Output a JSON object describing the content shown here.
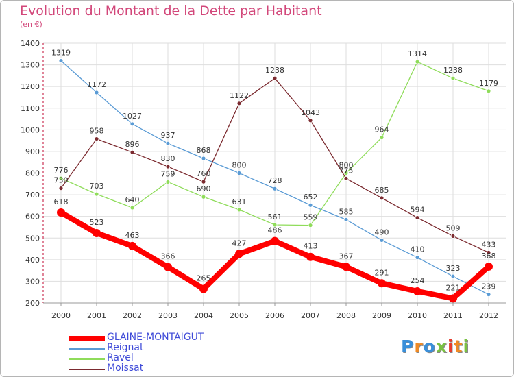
{
  "header": {
    "title": "Evolution du Montant de la Dette par Habitant",
    "subtitle": "(en €)"
  },
  "logo": {
    "text": "Proxiti",
    "colors": [
      "#3a8fd9",
      "#f08a24",
      "#3a8fd9",
      "#7ac143",
      "#e63b2e",
      "#f08a24",
      "#7ac143"
    ]
  },
  "chart_data": {
    "type": "line",
    "x": [
      "2000",
      "2001",
      "2002",
      "2003",
      "2004",
      "2005",
      "2006",
      "2007",
      "2008",
      "2009",
      "2010",
      "2011",
      "2012"
    ],
    "ylim": [
      200,
      1400
    ],
    "yticks": [
      200,
      300,
      400,
      500,
      600,
      700,
      800,
      900,
      1000,
      1100,
      1200,
      1300,
      1400
    ],
    "grid": true,
    "legend_position": "bottom-left",
    "series": [
      {
        "name": "Reignat",
        "color": "#5a9bd5",
        "values": [
          1319,
          1172,
          1027,
          937,
          868,
          800,
          728,
          652,
          585,
          490,
          410,
          323,
          239
        ]
      },
      {
        "name": "Ravel",
        "color": "#8fdc5a",
        "values": [
          776,
          703,
          640,
          759,
          690,
          631,
          561,
          559,
          800,
          964,
          1314,
          1238,
          1179
        ]
      },
      {
        "name": "Moissat",
        "color": "#7b2a2f",
        "values": [
          730,
          958,
          896,
          830,
          760,
          1122,
          1238,
          1043,
          775,
          685,
          594,
          509,
          433
        ]
      },
      {
        "name": "GLAINE-MONTAIGUT",
        "color": "#ff0000",
        "values": [
          618,
          523,
          463,
          366,
          265,
          427,
          486,
          413,
          367,
          291,
          254,
          221,
          368
        ]
      }
    ]
  }
}
